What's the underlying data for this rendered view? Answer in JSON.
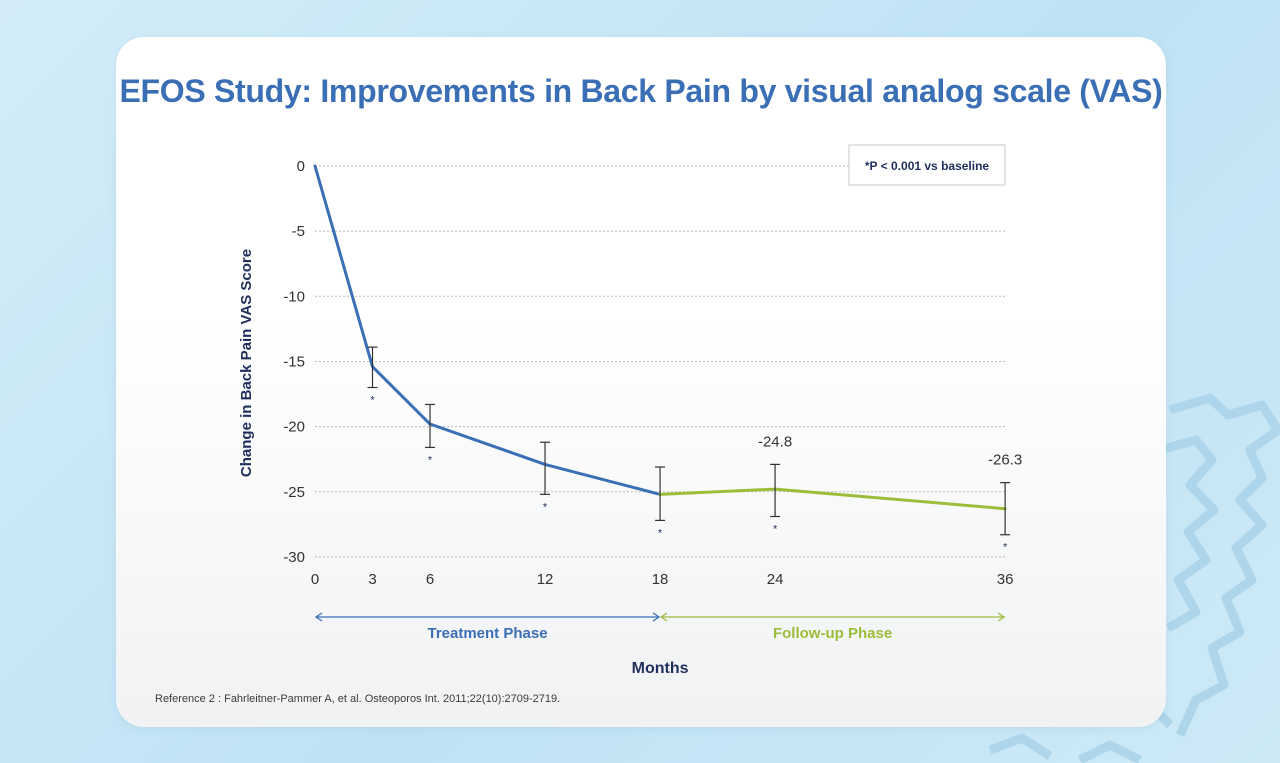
{
  "colors": {
    "treatment": "#3a6fb6",
    "followup": "#9bbd3a",
    "title": "#3a6fb6",
    "axis_text": "#1f2f5c"
  },
  "title": "EFOS Study: Improvements in Back Pain by visual analog scale (VAS)",
  "legend": "*P < 0.001 vs baseline",
  "reference": "Reference 2 : Fahrleitner-Pammer A, et al. Osteoporos Int. 2011;22(10):2709-2719.",
  "chart_data": {
    "type": "line",
    "title": "EFOS Study: Improvements in Back Pain by visual analog scale (VAS)",
    "xlabel": "Months",
    "ylabel": "Change in Back Pain VAS Score",
    "ylim": [
      -30,
      0
    ],
    "yticks": [
      0,
      -5,
      -10,
      -15,
      -20,
      -25,
      -30
    ],
    "x_categories": [
      "0",
      "3",
      "6",
      "12",
      "18",
      "24",
      "36"
    ],
    "grid": true,
    "legend_position": "top-right",
    "series": [
      {
        "name": "Treatment Phase",
        "color": "#3a6fb6",
        "points": [
          {
            "x": "0",
            "y": 0
          },
          {
            "x": "3",
            "y": -15.4,
            "err_low": -17.0,
            "err_high": -13.9,
            "sig": "*"
          },
          {
            "x": "6",
            "y": -19.8,
            "err_low": -21.6,
            "err_high": -18.3,
            "sig": "*"
          },
          {
            "x": "12",
            "y": -22.9,
            "err_low": -25.2,
            "err_high": -21.2,
            "sig": "*"
          },
          {
            "x": "18",
            "y": -25.2,
            "err_low": -27.2,
            "err_high": -23.1,
            "sig": "*"
          }
        ]
      },
      {
        "name": "Follow-up Phase",
        "color": "#9bbd3a",
        "points": [
          {
            "x": "18",
            "y": -25.2
          },
          {
            "x": "24",
            "y": -24.8,
            "err_low": -26.9,
            "err_high": -22.9,
            "sig": "*",
            "label": "-24.8"
          },
          {
            "x": "36",
            "y": -26.3,
            "err_low": -28.3,
            "err_high": -24.3,
            "sig": "*",
            "label": "-26.3"
          }
        ]
      }
    ],
    "phases": [
      {
        "name": "Treatment Phase",
        "from": "0",
        "to": "18",
        "color": "#3a6fb6"
      },
      {
        "name": "Follow-up Phase",
        "from": "18",
        "to": "36",
        "color": "#9bbd3a"
      }
    ]
  }
}
